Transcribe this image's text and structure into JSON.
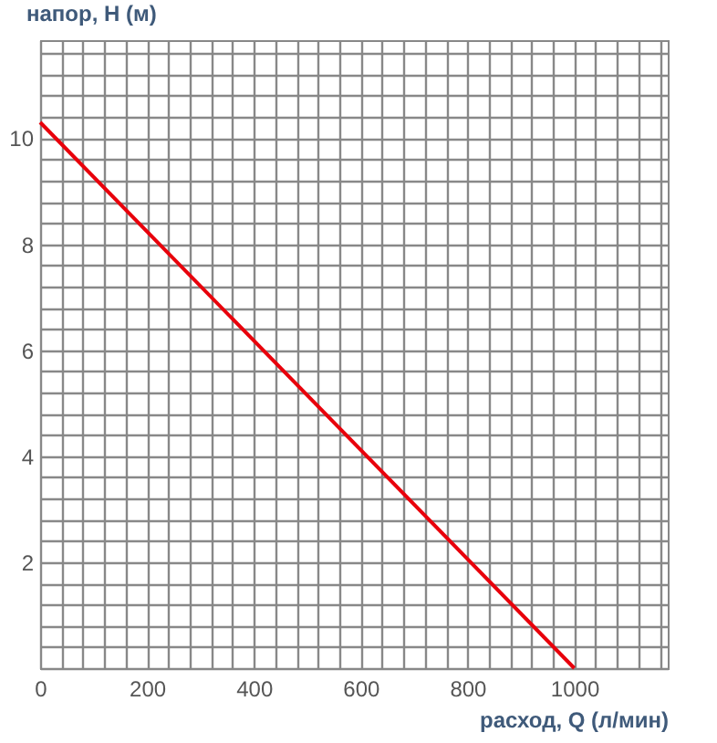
{
  "chart_data": {
    "type": "line",
    "xlabel": "расход, Q (л/мин)",
    "ylabel": "напор, H (м)",
    "x": [
      0,
      1000
    ],
    "series": [
      {
        "color": "#e8000b",
        "values": [
          10.3,
          0
        ]
      }
    ],
    "xlim": [
      0,
      1175
    ],
    "ylim": [
      0,
      11.85
    ],
    "xticks": [
      0,
      {
        "value": 40,
        "label": null
      },
      {
        "value": 80,
        "label": null
      },
      {
        "value": 120,
        "label": null
      },
      {
        "value": 160,
        "label": null
      },
      200,
      {
        "value": 240,
        "label": null
      },
      {
        "value": 280,
        "label": null
      },
      {
        "value": 320,
        "label": null
      },
      {
        "value": 360,
        "label": null
      },
      400,
      {
        "value": 440,
        "label": null
      },
      {
        "value": 480,
        "label": null
      },
      {
        "value": 520,
        "label": null
      },
      {
        "value": 560,
        "label": null
      },
      600,
      {
        "value": 640,
        "label": null
      },
      {
        "value": 680,
        "label": null
      },
      {
        "value": 720,
        "label": null
      },
      {
        "value": 760,
        "label": null
      },
      800,
      {
        "value": 840,
        "label": null
      },
      {
        "value": 880,
        "label": null
      },
      {
        "value": 920,
        "label": null
      },
      {
        "value": 960,
        "label": null
      },
      1000,
      {
        "value": 1040,
        "label": null
      },
      {
        "value": 1080,
        "label": null
      },
      {
        "value": 1120,
        "label": null
      },
      {
        "value": 1160,
        "label": null
      }
    ],
    "yticks": [
      {
        "value": 0,
        "label": null
      },
      {
        "value": 0.4,
        "label": null
      },
      {
        "value": 0.8,
        "label": null
      },
      {
        "value": 1.2,
        "label": null
      },
      {
        "value": 1.6,
        "label": null
      },
      2,
      {
        "value": 2.4,
        "label": null
      },
      {
        "value": 2.8,
        "label": null
      },
      {
        "value": 3.2,
        "label": null
      },
      {
        "value": 3.6,
        "label": null
      },
      4,
      {
        "value": 4.4,
        "label": null
      },
      {
        "value": 4.8,
        "label": null
      },
      {
        "value": 5.2,
        "label": null
      },
      {
        "value": 5.6,
        "label": null
      },
      6,
      {
        "value": 6.4,
        "label": null
      },
      {
        "value": 6.8,
        "label": null
      },
      {
        "value": 7.2,
        "label": null
      },
      {
        "value": 7.6,
        "label": null
      },
      8,
      {
        "value": 8.4,
        "label": null
      },
      {
        "value": 8.8,
        "label": null
      },
      {
        "value": 9.2,
        "label": null
      },
      {
        "value": 9.6,
        "label": null
      },
      10,
      {
        "value": 10.4,
        "label": null
      },
      {
        "value": 10.8,
        "label": null
      },
      {
        "value": 11.2,
        "label": null
      },
      {
        "value": 11.6,
        "label": null
      }
    ],
    "grid": true,
    "line_style": "solid",
    "marker": "none"
  }
}
